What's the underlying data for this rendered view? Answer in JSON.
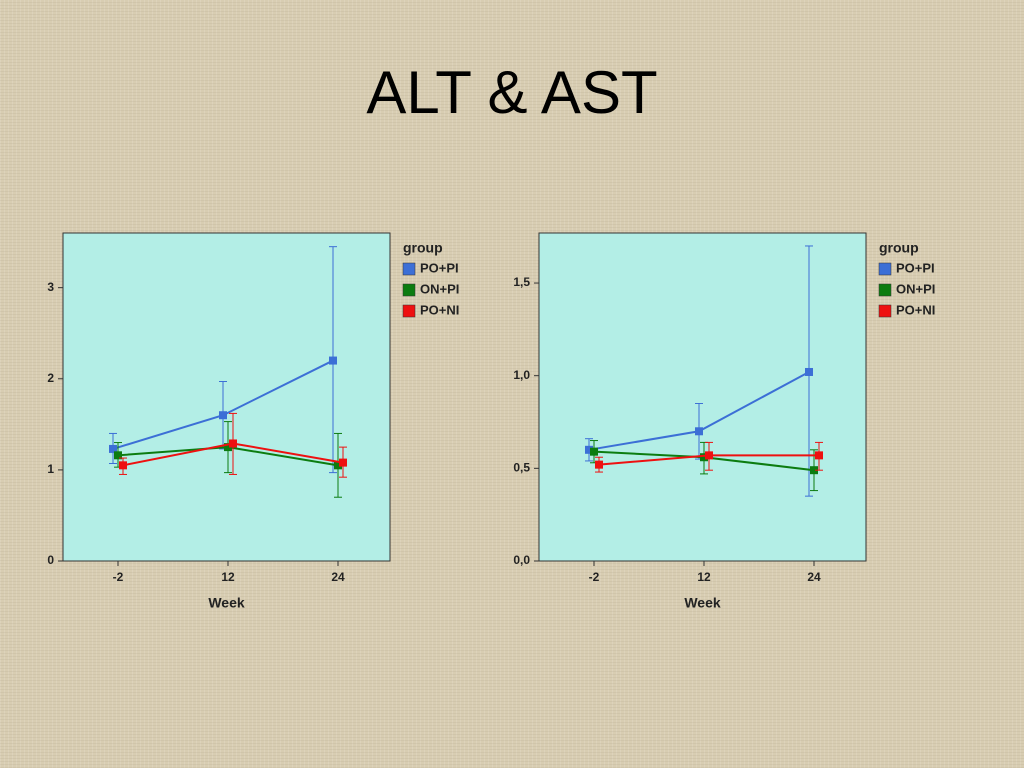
{
  "title": "ALT & AST",
  "chart_data": [
    {
      "type": "line",
      "categories": [
        "-2",
        "12",
        "24"
      ],
      "x_label": "Week",
      "ylim": [
        0,
        3.6
      ],
      "yticks": [
        0,
        1,
        2,
        3
      ],
      "legend_title": "group",
      "legend": "right",
      "series": [
        {
          "name": "PO+PI",
          "color": "#3c6fd6",
          "values": [
            1.23,
            1.6,
            2.2
          ],
          "lower": [
            1.07,
            1.23,
            0.97
          ],
          "upper": [
            1.4,
            1.97,
            3.45
          ]
        },
        {
          "name": "ON+PI",
          "color": "#0c7c10",
          "values": [
            1.16,
            1.25,
            1.05
          ],
          "lower": [
            1.03,
            0.97,
            0.7
          ],
          "upper": [
            1.3,
            1.53,
            1.4
          ]
        },
        {
          "name": "PO+NI",
          "color": "#ee1010",
          "values": [
            1.05,
            1.29,
            1.08
          ],
          "lower": [
            0.95,
            0.95,
            0.92
          ],
          "upper": [
            1.13,
            1.62,
            1.25
          ]
        }
      ]
    },
    {
      "type": "line",
      "categories": [
        "-2",
        "12",
        "24"
      ],
      "x_label": "Week",
      "ylim": [
        0,
        1.77
      ],
      "yticks": [
        {
          "value": 0,
          "label": "0,0"
        },
        {
          "value": 0.5,
          "label": "0,5"
        },
        {
          "value": 1,
          "label": "1,0"
        },
        {
          "value": 1.5,
          "label": "1,5"
        }
      ],
      "legend_title": "group",
      "legend": "right",
      "series": [
        {
          "name": "PO+PI",
          "color": "#3c6fd6",
          "values": [
            0.6,
            0.7,
            1.02
          ],
          "lower": [
            0.54,
            0.55,
            0.35
          ],
          "upper": [
            0.66,
            0.85,
            1.7
          ]
        },
        {
          "name": "ON+PI",
          "color": "#0c7c10",
          "values": [
            0.59,
            0.56,
            0.49
          ],
          "lower": [
            0.53,
            0.47,
            0.38
          ],
          "upper": [
            0.65,
            0.64,
            0.6
          ]
        },
        {
          "name": "PO+NI",
          "color": "#ee1010",
          "values": [
            0.52,
            0.57,
            0.57
          ],
          "lower": [
            0.48,
            0.49,
            0.49
          ],
          "upper": [
            0.56,
            0.64,
            0.64
          ]
        }
      ]
    }
  ]
}
